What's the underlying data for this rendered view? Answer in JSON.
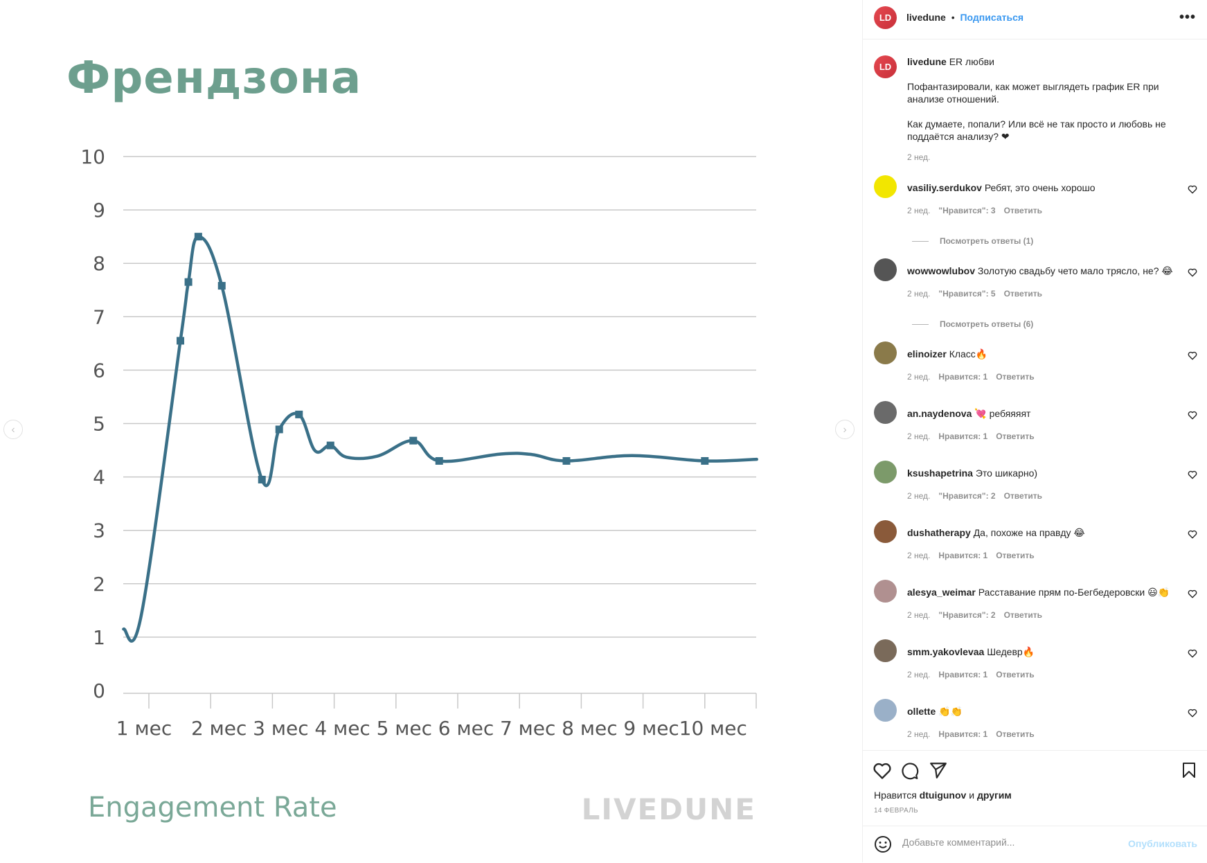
{
  "image": {
    "title": "Френдзона",
    "footer_left": "Engagement Rate",
    "footer_right": "LIVEDUNE"
  },
  "colors": {
    "line": "#3a7088",
    "title": "#6d9f8e",
    "grid": "#c8c8c8",
    "link": "#3897f0"
  },
  "chart_data": {
    "type": "line",
    "title": "Френдзона",
    "xlabel": "Engagement Rate",
    "ylabel": "",
    "ylim": [
      0,
      10
    ],
    "yticks": [
      "0",
      "1",
      "2",
      "3",
      "4",
      "5",
      "6",
      "7",
      "8",
      "9",
      "10"
    ],
    "xticks": [
      "1 мес",
      "2 мес",
      "3 мес",
      "4 мес",
      "5 мес",
      "6 мес",
      "7 мес",
      "8 мес",
      "9 мес",
      "10 мес"
    ],
    "grid": true,
    "series": [
      {
        "name": "ER",
        "points": [
          {
            "x": 0.59,
            "y": 1.15,
            "marker": false
          },
          {
            "x": 0.88,
            "y": 1.43,
            "marker": false
          },
          {
            "x": 1.51,
            "y": 6.55,
            "marker": true
          },
          {
            "x": 1.64,
            "y": 7.65,
            "marker": true
          },
          {
            "x": 1.8,
            "y": 8.5,
            "marker": true
          },
          {
            "x": 2.18,
            "y": 7.58,
            "marker": true
          },
          {
            "x": 2.83,
            "y": 3.95,
            "marker": true
          },
          {
            "x": 3.11,
            "y": 4.89,
            "marker": true
          },
          {
            "x": 3.43,
            "y": 5.17,
            "marker": true
          },
          {
            "x": 3.69,
            "y": 4.49,
            "marker": false
          },
          {
            "x": 3.94,
            "y": 4.59,
            "marker": true
          },
          {
            "x": 4.2,
            "y": 4.37,
            "marker": false
          },
          {
            "x": 4.7,
            "y": 4.39,
            "marker": false
          },
          {
            "x": 5.28,
            "y": 4.68,
            "marker": true
          },
          {
            "x": 5.7,
            "y": 4.3,
            "marker": true
          },
          {
            "x": 6.7,
            "y": 4.43,
            "marker": false
          },
          {
            "x": 7.2,
            "y": 4.42,
            "marker": false
          },
          {
            "x": 7.76,
            "y": 4.3,
            "marker": true
          },
          {
            "x": 8.82,
            "y": 4.4,
            "marker": false
          },
          {
            "x": 10.0,
            "y": 4.3,
            "marker": true
          },
          {
            "x": 10.84,
            "y": 4.33,
            "marker": false
          }
        ]
      }
    ]
  },
  "header": {
    "avatar": "LD",
    "username": "livedune",
    "separator": "•",
    "follow": "Подписаться",
    "more": "•••"
  },
  "post": {
    "avatar": "LD",
    "username": "livedune",
    "caption_title": "ER любви",
    "p1": "Пофантазировали, как может выглядеть график ER при анализе отношений.",
    "p2": "Как думаете, попали? Или всё не так просто и любовь не поддаётся анализу? ❤",
    "time": "2 нед."
  },
  "comments": [
    {
      "user": "vasiliy.serdukov",
      "text": "Ребят, это очень хорошо",
      "time": "2 нед.",
      "likes": "\"Нравится\": 3",
      "reply": "Ответить",
      "avatar_color": "#f2e600"
    },
    {
      "user": "wowwowlubov",
      "text": "Золотую свадьбу чето мало трясло, не? 😂",
      "time": "2 нед.",
      "likes": "\"Нравится\": 5",
      "reply": "Ответить",
      "avatar_color": "#555555"
    },
    {
      "user": "elinoizer",
      "text": "Класс🔥",
      "time": "2 нед.",
      "likes": "Нравится: 1",
      "reply": "Ответить",
      "avatar_color": "#8a7a4a"
    },
    {
      "user": "an.naydenova",
      "text": "💘 ребяяяят",
      "time": "2 нед.",
      "likes": "Нравится: 1",
      "reply": "Ответить",
      "avatar_color": "#6a6a6a"
    },
    {
      "user": "ksushapetrina",
      "text": "Это шикарно)",
      "time": "2 нед.",
      "likes": "\"Нравится\": 2",
      "reply": "Ответить",
      "avatar_color": "#7c9a6a"
    },
    {
      "user": "dushatherapy",
      "text": "Да, похоже на правду 😂",
      "time": "2 нед.",
      "likes": "Нравится: 1",
      "reply": "Ответить",
      "avatar_color": "#8a5a3a"
    },
    {
      "user": "alesya_weimar",
      "text": "Расставание прям по-Бегбедеровски 😃👏",
      "time": "2 нед.",
      "likes": "\"Нравится\": 2",
      "reply": "Ответить",
      "avatar_color": "#b09090"
    },
    {
      "user": "smm.yakovlevaa",
      "text": "Шедевр🔥",
      "time": "2 нед.",
      "likes": "Нравится: 1",
      "reply": "Ответить",
      "avatar_color": "#7a6a5a"
    },
    {
      "user": "ollette",
      "text": "👏👏",
      "time": "2 нед.",
      "likes": "Нравится: 1",
      "reply": "Ответить",
      "avatar_color": "#9ab0c8"
    }
  ],
  "replies": [
    {
      "label": "Посмотреть ответы (1)"
    },
    {
      "label": "Посмотреть ответы (6)"
    }
  ],
  "footer": {
    "likes_prefix": "Нравится",
    "likes_user": "dtuigunov",
    "likes_and": "и",
    "likes_others": "другим",
    "date": "14 ФЕВРАЛЬ",
    "comment_placeholder": "Добавьте комментарий...",
    "publish": "Опубликовать"
  },
  "nav": {
    "prev": "‹",
    "next": "›"
  }
}
